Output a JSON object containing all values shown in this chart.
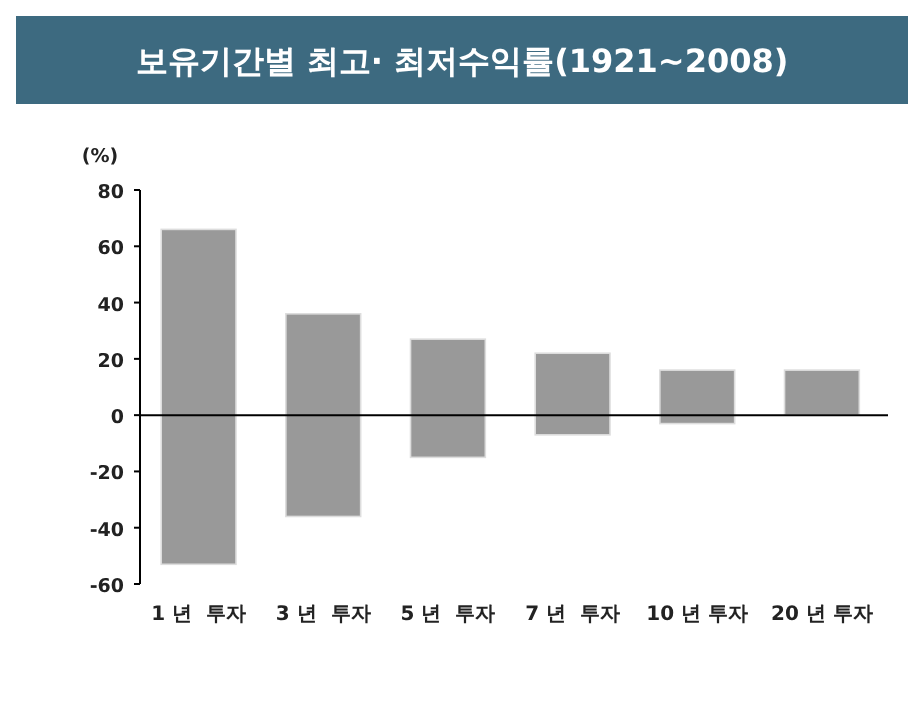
{
  "chart_data": {
    "type": "bar",
    "title": "보유기간별 최고· 최저수익률(1921~2008)",
    "ylabel": "(%)",
    "categories": [
      "1 년  투자",
      "3 년  투자",
      "5 년  투자",
      "7 년  투자",
      "10 년 투자",
      "20 년 투자"
    ],
    "base": [
      -53,
      -36,
      -15,
      -7,
      -3,
      0
    ],
    "values": [
      119,
      72,
      42,
      29,
      19,
      16
    ],
    "color": "#999999",
    "ylim": [
      -60,
      80
    ],
    "yticks": [
      -60,
      -40,
      -20,
      0,
      20,
      40,
      60,
      80
    ]
  }
}
